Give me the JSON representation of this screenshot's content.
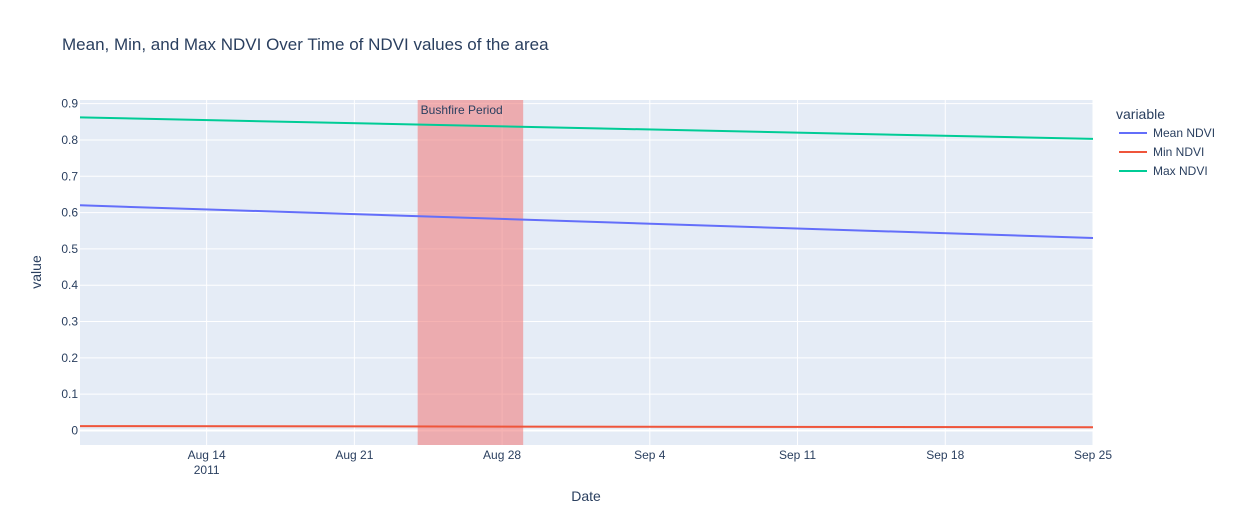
{
  "chart_data": {
    "type": "line",
    "title": "Mean, Min, and Max NDVI Over Time of NDVI values of the area",
    "xlabel": "Date",
    "ylabel": "value",
    "x_range": [
      "2011-08-08",
      "2011-09-25"
    ],
    "ylim": [
      -0.04,
      0.91
    ],
    "x_ticks": [
      {
        "date": "2011-08-14",
        "label": "Aug 14",
        "sublabel": "2011"
      },
      {
        "date": "2011-08-21",
        "label": "Aug 21",
        "sublabel": ""
      },
      {
        "date": "2011-08-28",
        "label": "Aug 28",
        "sublabel": ""
      },
      {
        "date": "2011-09-04",
        "label": "Sep 4",
        "sublabel": ""
      },
      {
        "date": "2011-09-11",
        "label": "Sep 11",
        "sublabel": ""
      },
      {
        "date": "2011-09-18",
        "label": "Sep 18",
        "sublabel": ""
      },
      {
        "date": "2011-09-25",
        "label": "Sep 25",
        "sublabel": ""
      }
    ],
    "y_ticks": [
      0,
      0.1,
      0.2,
      0.3,
      0.4,
      0.5,
      0.6,
      0.7,
      0.8,
      0.9
    ],
    "y_tick_labels": [
      "0",
      "0.1",
      "0.2",
      "0.3",
      "0.4",
      "0.5",
      "0.6",
      "0.7",
      "0.8",
      "0.9"
    ],
    "grid": true,
    "legend": {
      "title": "variable",
      "placement": "right"
    },
    "series": [
      {
        "name": "Mean NDVI",
        "color": "#636efa",
        "points": [
          {
            "x": "2011-08-08",
            "y": 0.62
          },
          {
            "x": "2011-09-25",
            "y": 0.53
          }
        ]
      },
      {
        "name": "Min NDVI",
        "color": "#ef553b",
        "points": [
          {
            "x": "2011-08-08",
            "y": 0.012
          },
          {
            "x": "2011-09-25",
            "y": 0.009
          }
        ]
      },
      {
        "name": "Max NDVI",
        "color": "#00cc96",
        "points": [
          {
            "x": "2011-08-08",
            "y": 0.862
          },
          {
            "x": "2011-09-25",
            "y": 0.803
          }
        ]
      }
    ],
    "shaded_region": {
      "start": "2011-08-24",
      "end": "2011-08-29",
      "label": "Bushfire Period",
      "color": "#f08080"
    }
  }
}
